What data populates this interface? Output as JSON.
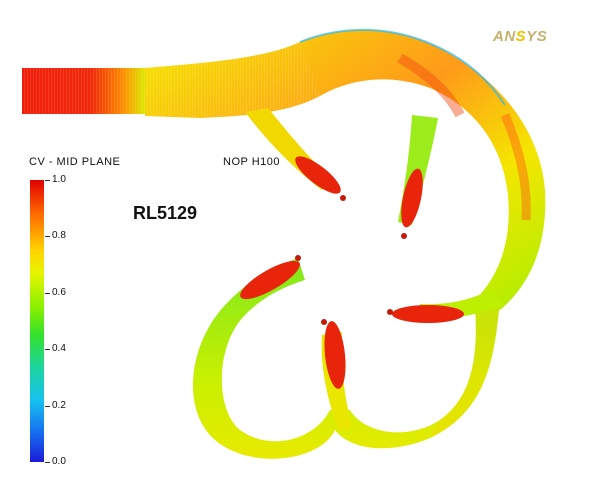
{
  "logo": {
    "prefix": "AN",
    "accent": "S",
    "suffix": "YS"
  },
  "legend": {
    "title": "CV - MID PLANE",
    "ticks": [
      "1.0",
      "0.8",
      "0.6",
      "0.4",
      "0.2",
      "0.0"
    ],
    "colors": {
      "high": "#e00000",
      "upper": "#ffd400",
      "mid": "#33e12d",
      "lower": "#16c2ef",
      "low": "#1c1bd8"
    }
  },
  "run_label": "NOP H100",
  "model_id": "RL5129"
}
